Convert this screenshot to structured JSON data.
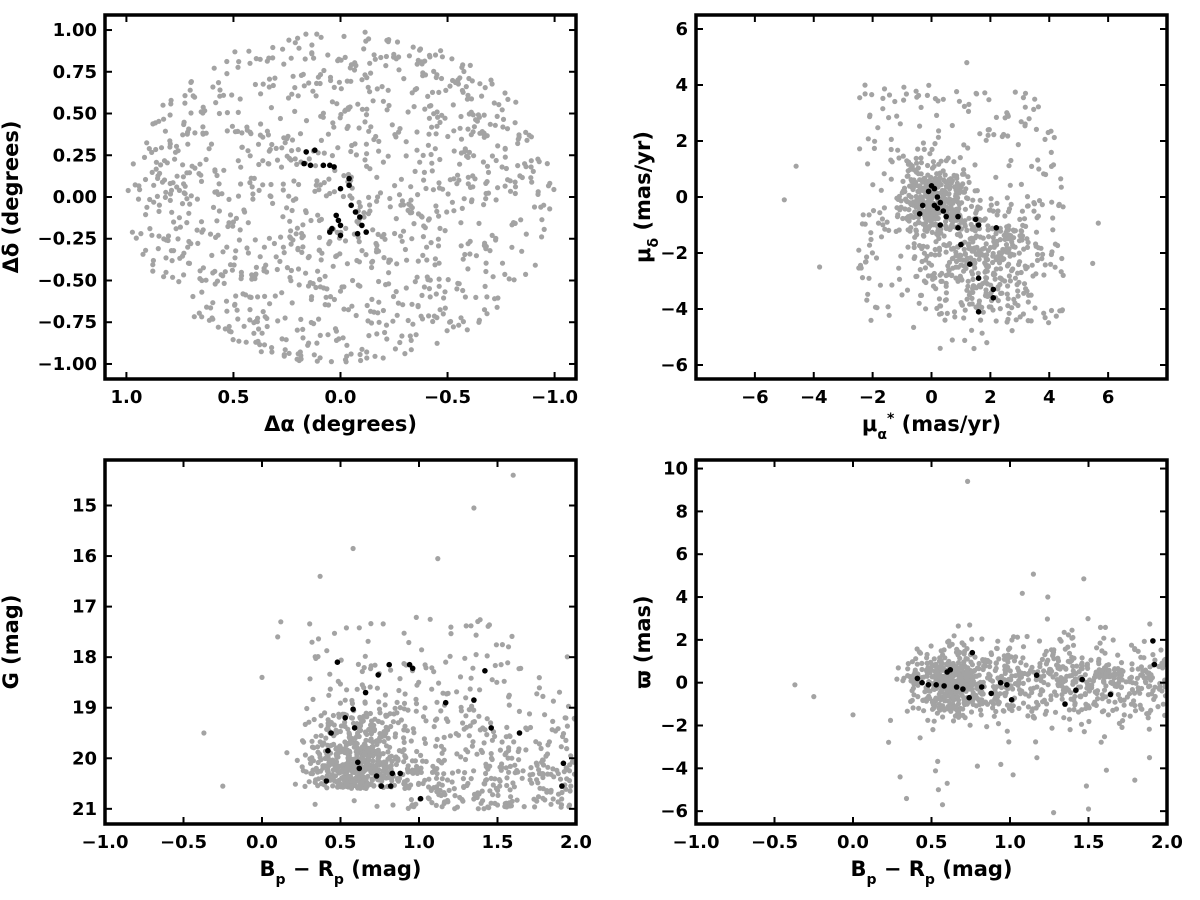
{
  "figure": {
    "background": "#ffffff"
  },
  "colors": {
    "field": "#a3a3a3",
    "members": "#000000",
    "frame": "#000000"
  },
  "chart_data": [
    {
      "id": "sky-position",
      "type": "scatter",
      "title": "",
      "xlabel_parts": [
        {
          "t": "Δα (degrees)"
        }
      ],
      "ylabel_parts": [
        {
          "t": "Δδ (degrees)"
        }
      ],
      "xlim": [
        1.1,
        -1.1
      ],
      "ylim": [
        -1.09,
        1.09
      ],
      "xticks": [
        1.0,
        0.5,
        0.0,
        -0.5,
        -1.0
      ],
      "xtick_labels": [
        "1.0",
        "0.5",
        "0.0",
        "−0.5",
        "−1.0"
      ],
      "yticks": [
        -1.0,
        -0.75,
        -0.5,
        -0.25,
        0.0,
        0.25,
        0.5,
        0.75,
        1.0
      ],
      "ytick_labels": [
        "−1.00",
        "−0.75",
        "−0.50",
        "−0.25",
        "0.00",
        "0.25",
        "0.50",
        "0.75",
        "1.00"
      ],
      "grid": false,
      "field_distribution": {
        "shape": "disk",
        "center": [
          0,
          0
        ],
        "radius": 1.0,
        "count": 1100
      },
      "members": [
        [
          0.16,
          0.27
        ],
        [
          0.12,
          0.28
        ],
        [
          0.17,
          0.2
        ],
        [
          0.14,
          0.19
        ],
        [
          0.08,
          0.19
        ],
        [
          0.05,
          0.19
        ],
        [
          0.03,
          0.18
        ],
        [
          0.0,
          0.05
        ],
        [
          -0.04,
          0.11
        ],
        [
          -0.04,
          0.07
        ],
        [
          -0.05,
          -0.05
        ],
        [
          -0.07,
          -0.09
        ],
        [
          -0.09,
          -0.12
        ],
        [
          0.02,
          -0.11
        ],
        [
          0.01,
          -0.14
        ],
        [
          0.0,
          -0.17
        ],
        [
          -0.1,
          -0.17
        ],
        [
          -0.12,
          -0.21
        ],
        [
          -0.08,
          -0.22
        ],
        [
          0.05,
          -0.21
        ],
        [
          0.04,
          -0.19
        ],
        [
          0.0,
          -0.23
        ]
      ]
    },
    {
      "id": "proper-motion",
      "type": "scatter",
      "title": "",
      "xlabel_parts": [
        {
          "t": "μ"
        },
        {
          "t": "α",
          "sub": true
        },
        {
          "t": "*",
          "sup": true
        },
        {
          "t": " (mas/yr)"
        }
      ],
      "ylabel_parts": [
        {
          "t": "μ"
        },
        {
          "t": "δ",
          "sub": true
        },
        {
          "t": " (mas/yr)"
        }
      ],
      "xlim": [
        -8,
        8
      ],
      "ylim": [
        -6.5,
        6.5
      ],
      "xticks": [
        -6,
        -4,
        -2,
        0,
        2,
        4,
        6
      ],
      "xtick_labels": [
        "−6",
        "−4",
        "−2",
        "0",
        "2",
        "4",
        "6"
      ],
      "yticks": [
        -6,
        -4,
        -2,
        0,
        2,
        4,
        6
      ],
      "yticks_labels_note": "",
      "ytick_labels": [
        "−6",
        "−4",
        "−2",
        "0",
        "2",
        "4",
        "6"
      ],
      "grid": false,
      "field_distribution": {
        "shape": "clumps",
        "count": 1000
      },
      "members": [
        [
          -0.3,
          -0.3
        ],
        [
          -0.1,
          0.2
        ],
        [
          0.0,
          0.4
        ],
        [
          0.1,
          0.3
        ],
        [
          0.2,
          0.0
        ],
        [
          0.3,
          -0.2
        ],
        [
          0.2,
          -0.4
        ],
        [
          0.4,
          -0.5
        ],
        [
          0.5,
          -0.7
        ],
        [
          0.3,
          -1.0
        ],
        [
          -0.4,
          -0.6
        ],
        [
          0.1,
          -0.3
        ],
        [
          0.9,
          -0.7
        ],
        [
          1.0,
          -1.7
        ],
        [
          0.9,
          -1.1
        ],
        [
          1.3,
          -2.4
        ],
        [
          1.6,
          -1.0
        ],
        [
          1.5,
          -0.8
        ],
        [
          1.6,
          -2.9
        ],
        [
          2.2,
          -1.1
        ],
        [
          2.1,
          -3.3
        ],
        [
          2.1,
          -3.6
        ],
        [
          1.6,
          -4.1
        ]
      ]
    },
    {
      "id": "cmd",
      "type": "scatter",
      "title": "",
      "xlabel_parts": [
        {
          "t": "B"
        },
        {
          "t": "p",
          "sub": true
        },
        {
          "t": " − R"
        },
        {
          "t": "p",
          "sub": true
        },
        {
          "t": " (mag)"
        }
      ],
      "ylabel_parts": [
        {
          "t": "G (mag)"
        }
      ],
      "xlim": [
        -1.0,
        2.0
      ],
      "ylim": [
        21.3,
        14.1
      ],
      "xticks": [
        -1.0,
        -0.5,
        0.0,
        0.5,
        1.0,
        1.5,
        2.0
      ],
      "xtick_labels": [
        "−1.0",
        "−0.5",
        "0.0",
        "0.5",
        "1.0",
        "1.5",
        "2.0"
      ],
      "yticks": [
        15,
        16,
        17,
        18,
        19,
        20,
        21
      ],
      "ytick_labels": [
        "15",
        "16",
        "17",
        "18",
        "19",
        "20",
        "21"
      ],
      "grid": false,
      "field_distribution": {
        "shape": "cmd",
        "count": 1000
      },
      "members": [
        [
          0.41,
          20.45
        ],
        [
          0.62,
          20.2
        ],
        [
          0.61,
          20.08
        ],
        [
          0.73,
          20.35
        ],
        [
          0.76,
          20.55
        ],
        [
          0.83,
          20.3
        ],
        [
          0.88,
          20.3
        ],
        [
          0.82,
          20.55
        ],
        [
          1.01,
          20.8
        ],
        [
          0.42,
          19.85
        ],
        [
          0.44,
          19.5
        ],
        [
          0.53,
          19.2
        ],
        [
          0.59,
          19.4
        ],
        [
          0.58,
          19.03
        ],
        [
          0.66,
          18.7
        ],
        [
          0.74,
          18.35
        ],
        [
          0.81,
          18.15
        ],
        [
          0.96,
          18.22
        ],
        [
          0.94,
          18.15
        ],
        [
          0.48,
          18.1
        ],
        [
          1.35,
          18.85
        ],
        [
          1.42,
          18.27
        ],
        [
          1.46,
          19.4
        ],
        [
          1.64,
          19.5
        ],
        [
          1.91,
          20.55
        ],
        [
          1.92,
          20.1
        ],
        [
          1.17,
          18.9
        ]
      ]
    },
    {
      "id": "parallax",
      "type": "scatter",
      "title": "",
      "xlabel_parts": [
        {
          "t": "B"
        },
        {
          "t": "p",
          "sub": true
        },
        {
          "t": " − R"
        },
        {
          "t": "p",
          "sub": true
        },
        {
          "t": " (mag)"
        }
      ],
      "ylabel_parts": [
        {
          "t": "ϖ (mas)"
        }
      ],
      "xlim": [
        -1.0,
        2.0
      ],
      "ylim": [
        -6.6,
        10.4
      ],
      "xticks": [
        -1.0,
        -0.5,
        0.0,
        0.5,
        1.0,
        1.5,
        2.0
      ],
      "xtick_labels": [
        "−1.0",
        "−0.5",
        "0.0",
        "0.5",
        "1.0",
        "1.5",
        "2.0"
      ],
      "yticks": [
        -6,
        -4,
        -2,
        0,
        2,
        4,
        6,
        8,
        10
      ],
      "ytick_labels": [
        "−6",
        "−4",
        "−2",
        "0",
        "2",
        "4",
        "6",
        "8",
        "10"
      ],
      "grid": false,
      "field_distribution": {
        "shape": "parallax",
        "count": 1000
      },
      "members": [
        [
          0.41,
          0.2
        ],
        [
          0.44,
          0.0
        ],
        [
          0.48,
          -0.1
        ],
        [
          0.53,
          -0.1
        ],
        [
          0.58,
          -0.15
        ],
        [
          0.6,
          0.5
        ],
        [
          0.62,
          0.6
        ],
        [
          0.66,
          -0.2
        ],
        [
          0.7,
          -0.3
        ],
        [
          0.74,
          -0.7
        ],
        [
          0.76,
          1.4
        ],
        [
          0.82,
          -0.2
        ],
        [
          0.88,
          -0.5
        ],
        [
          0.94,
          0.0
        ],
        [
          0.98,
          -0.1
        ],
        [
          1.01,
          -0.8
        ],
        [
          1.17,
          0.35
        ],
        [
          1.35,
          -1.0
        ],
        [
          1.42,
          -0.35
        ],
        [
          1.46,
          0.15
        ],
        [
          1.64,
          -0.55
        ],
        [
          1.91,
          1.95
        ],
        [
          1.92,
          0.85
        ]
      ]
    }
  ]
}
